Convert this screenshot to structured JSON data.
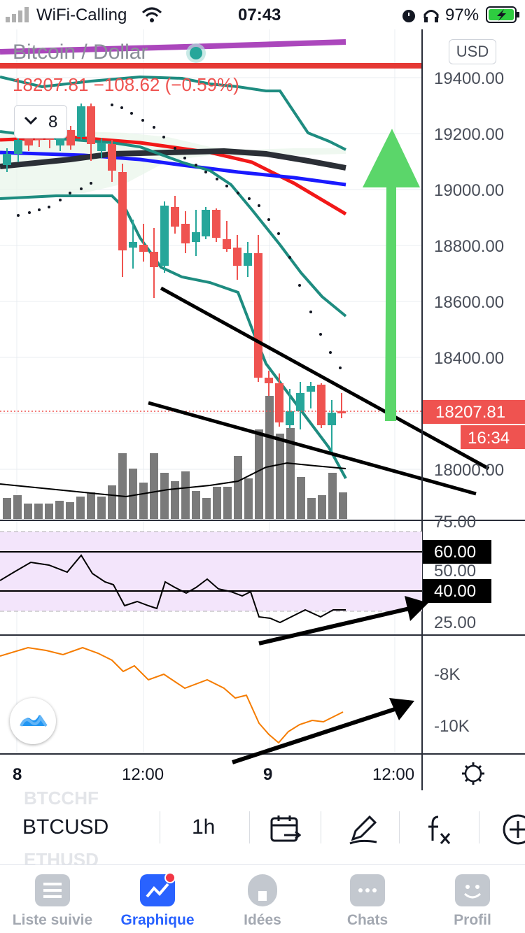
{
  "status_bar": {
    "carrier": "WiFi-Calling",
    "time": "07:43",
    "battery": "97%"
  },
  "header": {
    "title": "Bitcoin / Dollar",
    "price_change": "18207.81 −108.62 (−0.59%)",
    "interval_count": "8",
    "currency": "USD"
  },
  "price_axis": {
    "labels": [
      "19400.00",
      "19200.00",
      "19000.00",
      "18800.00",
      "18600.00",
      "18400.00",
      "18000.00"
    ],
    "last_price": "18207.81",
    "countdown": "16:34"
  },
  "rsi_panel": {
    "levels": [
      "75.00",
      "50.00",
      "25.00"
    ],
    "upper_band": "60.00",
    "lower_band": "40.00"
  },
  "obv_panel": {
    "labels": [
      "-8K",
      "-10K"
    ]
  },
  "time_axis": {
    "labels": [
      "8",
      "12:00",
      "9",
      "12:00"
    ]
  },
  "toolbar": {
    "ghost_top": "BTCCHF",
    "symbol": "BTCUSD",
    "ghost_bottom": "ETHUSD",
    "interval": "1h"
  },
  "tabs": [
    {
      "label": "Liste suivie"
    },
    {
      "label": "Graphique"
    },
    {
      "label": "Idées"
    },
    {
      "label": "Chats"
    },
    {
      "label": "Profil"
    }
  ],
  "icons": {
    "settings": "gear-icon",
    "logo": "tradingview-logo-icon",
    "calendar": "calendar-replay-icon",
    "drawing": "pen-icon",
    "indicators": "function-fx-icon",
    "add": "plus-icon"
  },
  "colors": {
    "up": "#26a69a",
    "down": "#ef5350",
    "accent": "#2962ff",
    "rsi_band": "#f3e5fb",
    "obv_line": "#f57c00",
    "arrow_green": "#5bd66a"
  }
}
